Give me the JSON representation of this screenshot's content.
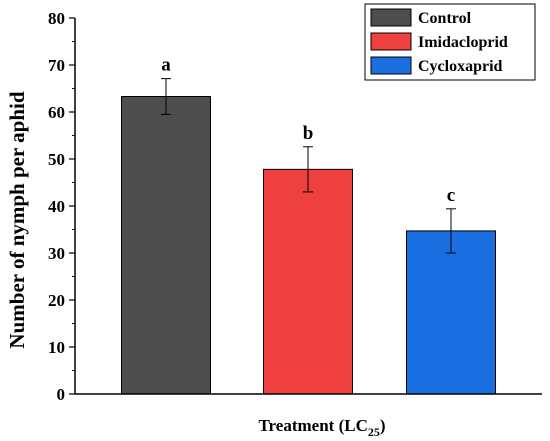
{
  "chart_data": {
    "type": "bar",
    "categories": [
      "Control",
      "Imidacloprid",
      "Cycloxaprid"
    ],
    "values": [
      63.3,
      47.8,
      34.7
    ],
    "errors": [
      3.8,
      4.8,
      4.7
    ],
    "significance_letters": [
      "a",
      "b",
      "c"
    ],
    "colors": [
      "#4d4d4d",
      "#ef4040",
      "#1a6fe0"
    ],
    "ylabel": "Number of nymph per aphid",
    "xlabel_main": "Treatment (LC",
    "xlabel_sub": "25",
    "xlabel_close": ")",
    "ylim": [
      0,
      80
    ],
    "yticks": [
      "0",
      "10",
      "20",
      "30",
      "40",
      "50",
      "60",
      "70",
      "80"
    ],
    "legend": {
      "position": "top-right",
      "entries": [
        "Control",
        "Imidacloprid",
        "Cycloxaprid"
      ]
    },
    "grid": false
  }
}
